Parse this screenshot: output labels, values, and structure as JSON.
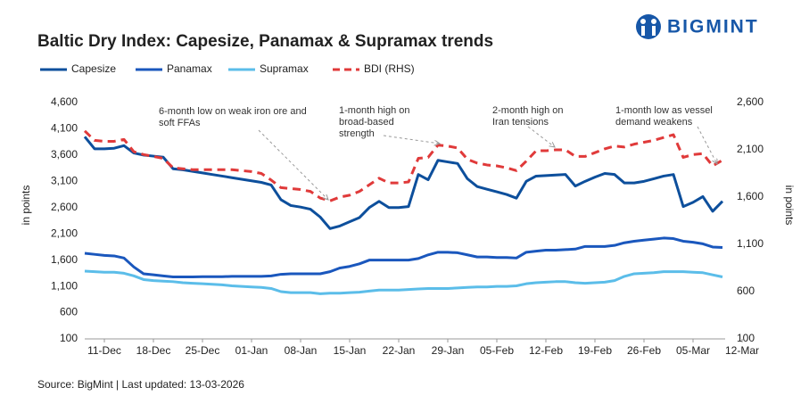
{
  "chart_data": {
    "type": "line",
    "title": "Baltic Dry Index: Capesize, Panamax & Supramax trends",
    "brand": "BIGMINT",
    "source": "Source: BigMint | Last updated: 13-03-2026",
    "ylabel": "in points",
    "y2label": "in points",
    "categories": [
      null,
      null,
      "11-Dec",
      null,
      null,
      null,
      null,
      "18-Dec",
      null,
      null,
      null,
      null,
      "25-Dec",
      null,
      null,
      null,
      null,
      "01-Jan",
      null,
      null,
      null,
      null,
      "08-Jan",
      null,
      null,
      null,
      null,
      "15-Jan",
      null,
      null,
      null,
      null,
      "22-Jan",
      null,
      null,
      null,
      null,
      "29-Jan",
      null,
      null,
      null,
      null,
      "05-Feb",
      null,
      null,
      null,
      null,
      "12-Feb",
      null,
      null,
      null,
      null,
      "19-Feb",
      null,
      null,
      null,
      null,
      "26-Feb",
      null,
      null,
      null,
      null,
      "05-Mar",
      null,
      null,
      null,
      null,
      "12-Mar"
    ],
    "ylim": [
      100,
      4600
    ],
    "yticks": [
      100,
      600,
      {
        "value": 1100,
        "label": "1,100"
      },
      {
        "value": 1600,
        "label": "1,600"
      },
      {
        "value": 2100,
        "label": "2,100"
      },
      {
        "value": 2600,
        "label": "2,600"
      },
      {
        "value": 3100,
        "label": "3,100"
      },
      {
        "value": 3600,
        "label": "3,600"
      },
      {
        "value": 4100,
        "label": "4,100"
      },
      {
        "value": 4600,
        "label": "4,600"
      }
    ],
    "y2lim": [
      100,
      2600
    ],
    "y2ticks": [
      100,
      600,
      {
        "value": 1100,
        "label": "1,100"
      },
      {
        "value": 1600,
        "label": "1,600"
      },
      {
        "value": 2100,
        "label": "2,100"
      },
      {
        "value": 2600,
        "label": "2,600"
      }
    ],
    "series": [
      {
        "name": "Capesize",
        "color": "#0d4f9c",
        "values": [
          3950,
          3720,
          3720,
          3730,
          3780,
          3640,
          3600,
          3580,
          3560,
          3340,
          3320,
          3290,
          3260,
          3230,
          3200,
          3170,
          3140,
          3110,
          3080,
          3030,
          2750,
          2640,
          2610,
          2570,
          2420,
          2200,
          2250,
          2330,
          2410,
          2600,
          2720,
          2600,
          2600,
          2620,
          3230,
          3130,
          3500,
          3470,
          3440,
          3150,
          3000,
          2950,
          2900,
          2850,
          2780,
          3100,
          3200,
          3210,
          3220,
          3230,
          3010,
          3100,
          3180,
          3250,
          3230,
          3070,
          3070,
          3100,
          3150,
          3200,
          3230,
          2620,
          2700,
          2810,
          2530,
          2720,
          null,
          null
        ]
      },
      {
        "name": "Panamax",
        "color": "#1a57bd",
        "values": [
          1730,
          1710,
          1690,
          1680,
          1640,
          1470,
          1340,
          1320,
          1300,
          1280,
          1280,
          1280,
          1285,
          1285,
          1285,
          1290,
          1290,
          1290,
          1290,
          1300,
          1330,
          1340,
          1340,
          1340,
          1340,
          1380,
          1450,
          1480,
          1530,
          1600,
          1600,
          1600,
          1600,
          1600,
          1630,
          1700,
          1750,
          1750,
          1740,
          1700,
          1660,
          1660,
          1650,
          1650,
          1640,
          1750,
          1770,
          1790,
          1790,
          1800,
          1810,
          1860,
          1860,
          1860,
          1880,
          1930,
          1960,
          1980,
          2000,
          2020,
          2010,
          1960,
          1940,
          1910,
          1850,
          1840,
          null,
          null
        ]
      },
      {
        "name": "Supramax",
        "color": "#5bbde9",
        "values": [
          1390,
          1380,
          1370,
          1370,
          1350,
          1300,
          1230,
          1210,
          1200,
          1190,
          1170,
          1160,
          1150,
          1140,
          1130,
          1110,
          1100,
          1090,
          1080,
          1060,
          1000,
          980,
          980,
          980,
          960,
          970,
          970,
          980,
          990,
          1010,
          1030,
          1030,
          1030,
          1040,
          1050,
          1060,
          1060,
          1060,
          1070,
          1080,
          1090,
          1090,
          1100,
          1100,
          1110,
          1150,
          1170,
          1180,
          1190,
          1190,
          1170,
          1160,
          1170,
          1180,
          1210,
          1290,
          1340,
          1350,
          1360,
          1380,
          1380,
          1380,
          1370,
          1360,
          1320,
          1280,
          null,
          null
        ]
      },
      {
        "name": "BDI (RHS)",
        "color": "#e03a3a",
        "axis": "y2",
        "dashed": true,
        "values": [
          2300,
          2200,
          2190,
          2190,
          2210,
          2080,
          2050,
          2030,
          2010,
          1910,
          1900,
          1890,
          1890,
          1890,
          1890,
          1890,
          1880,
          1870,
          1850,
          1780,
          1700,
          1690,
          1680,
          1660,
          1590,
          1560,
          1600,
          1620,
          1660,
          1730,
          1800,
          1750,
          1750,
          1760,
          2010,
          2020,
          2150,
          2140,
          2120,
          2000,
          1960,
          1940,
          1930,
          1910,
          1880,
          1980,
          2090,
          2090,
          2100,
          2100,
          2030,
          2030,
          2070,
          2110,
          2140,
          2130,
          2160,
          2180,
          2200,
          2230,
          2260,
          2020,
          2050,
          2060,
          1930,
          1990,
          null,
          null
        ]
      }
    ],
    "annotations": [
      {
        "lines": [
          "6-month low on weak iron ore and",
          "soft FFAs"
        ]
      },
      {
        "lines": [
          "1-month high on",
          "broad-based",
          "strength"
        ]
      },
      {
        "lines": [
          "2-month high on",
          "Iran tensions"
        ]
      },
      {
        "lines": [
          "1-month low as vessel",
          "demand weakens"
        ]
      }
    ]
  }
}
